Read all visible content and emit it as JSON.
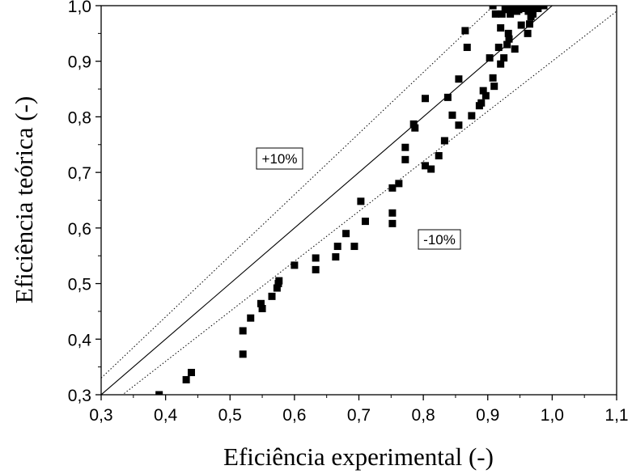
{
  "chart_data": {
    "type": "scatter",
    "title": "",
    "xlabel": "Eficiência experimental (-)",
    "ylabel": "Eficiência teórica (-)",
    "xlim": [
      0.3,
      1.1
    ],
    "ylim": [
      0.3,
      1.0
    ],
    "x_ticks": [
      "0,3",
      "0,4",
      "0,5",
      "0,6",
      "0,7",
      "0,8",
      "0,9",
      "1,0",
      "1,1"
    ],
    "y_ticks": [
      "0,3",
      "0,4",
      "0,5",
      "0,6",
      "0,7",
      "0,8",
      "0,9",
      "1,0"
    ],
    "grid": false,
    "reference_lines": [
      {
        "label": "",
        "style": "solid",
        "factor": 1.0
      },
      {
        "label": "+10%",
        "style": "dotted",
        "factor": 1.1
      },
      {
        "label": "-10%",
        "style": "dotted",
        "factor": 0.9
      }
    ],
    "annotations": [
      "+10%",
      "-10%"
    ],
    "series": [
      {
        "marker": "square",
        "color": "#000000",
        "points": [
          [
            0.39,
            0.3
          ],
          [
            0.432,
            0.327
          ],
          [
            0.44,
            0.34
          ],
          [
            0.52,
            0.373
          ],
          [
            0.52,
            0.415
          ],
          [
            0.532,
            0.438
          ],
          [
            0.548,
            0.464
          ],
          [
            0.55,
            0.455
          ],
          [
            0.565,
            0.477
          ],
          [
            0.573,
            0.492
          ],
          [
            0.575,
            0.5
          ],
          [
            0.576,
            0.505
          ],
          [
            0.6,
            0.533
          ],
          [
            0.633,
            0.525
          ],
          [
            0.633,
            0.546
          ],
          [
            0.664,
            0.548
          ],
          [
            0.667,
            0.567
          ],
          [
            0.68,
            0.59
          ],
          [
            0.693,
            0.567
          ],
          [
            0.703,
            0.648
          ],
          [
            0.71,
            0.612
          ],
          [
            0.752,
            0.627
          ],
          [
            0.752,
            0.608
          ],
          [
            0.752,
            0.672
          ],
          [
            0.762,
            0.68
          ],
          [
            0.772,
            0.745
          ],
          [
            0.772,
            0.723
          ],
          [
            0.785,
            0.787
          ],
          [
            0.787,
            0.78
          ],
          [
            0.803,
            0.833
          ],
          [
            0.803,
            0.712
          ],
          [
            0.812,
            0.706
          ],
          [
            0.824,
            0.73
          ],
          [
            0.833,
            0.757
          ],
          [
            0.838,
            0.835
          ],
          [
            0.845,
            0.803
          ],
          [
            0.855,
            0.868
          ],
          [
            0.855,
            0.785
          ],
          [
            0.865,
            0.955
          ],
          [
            0.868,
            0.925
          ],
          [
            0.875,
            0.802
          ],
          [
            0.887,
            0.82
          ],
          [
            0.89,
            0.825
          ],
          [
            0.893,
            0.847
          ],
          [
            0.897,
            0.838
          ],
          [
            0.903,
            0.906
          ],
          [
            0.908,
            1.0
          ],
          [
            0.908,
            0.87
          ],
          [
            0.91,
            0.855
          ],
          [
            0.912,
            0.985
          ],
          [
            0.917,
            0.925
          ],
          [
            0.92,
            0.895
          ],
          [
            0.92,
            0.96
          ],
          [
            0.922,
            0.985
          ],
          [
            0.925,
            0.906
          ],
          [
            0.927,
            0.993
          ],
          [
            0.93,
            0.93
          ],
          [
            0.932,
            0.95
          ],
          [
            0.933,
            0.94
          ],
          [
            0.935,
            0.985
          ],
          [
            0.937,
            0.997
          ],
          [
            0.94,
            1.0
          ],
          [
            0.942,
            0.922
          ],
          [
            0.945,
            0.99
          ],
          [
            0.948,
            0.993
          ],
          [
            0.952,
            0.965
          ],
          [
            0.955,
            1.0
          ],
          [
            0.957,
            0.995
          ],
          [
            0.96,
            1.0
          ],
          [
            0.962,
            0.95
          ],
          [
            0.963,
            0.99
          ],
          [
            0.965,
            0.967
          ],
          [
            0.967,
            0.98
          ],
          [
            0.968,
            1.0
          ],
          [
            0.97,
            0.985
          ],
          [
            0.972,
            0.995
          ],
          [
            0.975,
            1.0
          ],
          [
            0.978,
            0.995
          ],
          [
            0.982,
            1.0
          ],
          [
            0.987,
            1.0
          ]
        ]
      }
    ]
  }
}
